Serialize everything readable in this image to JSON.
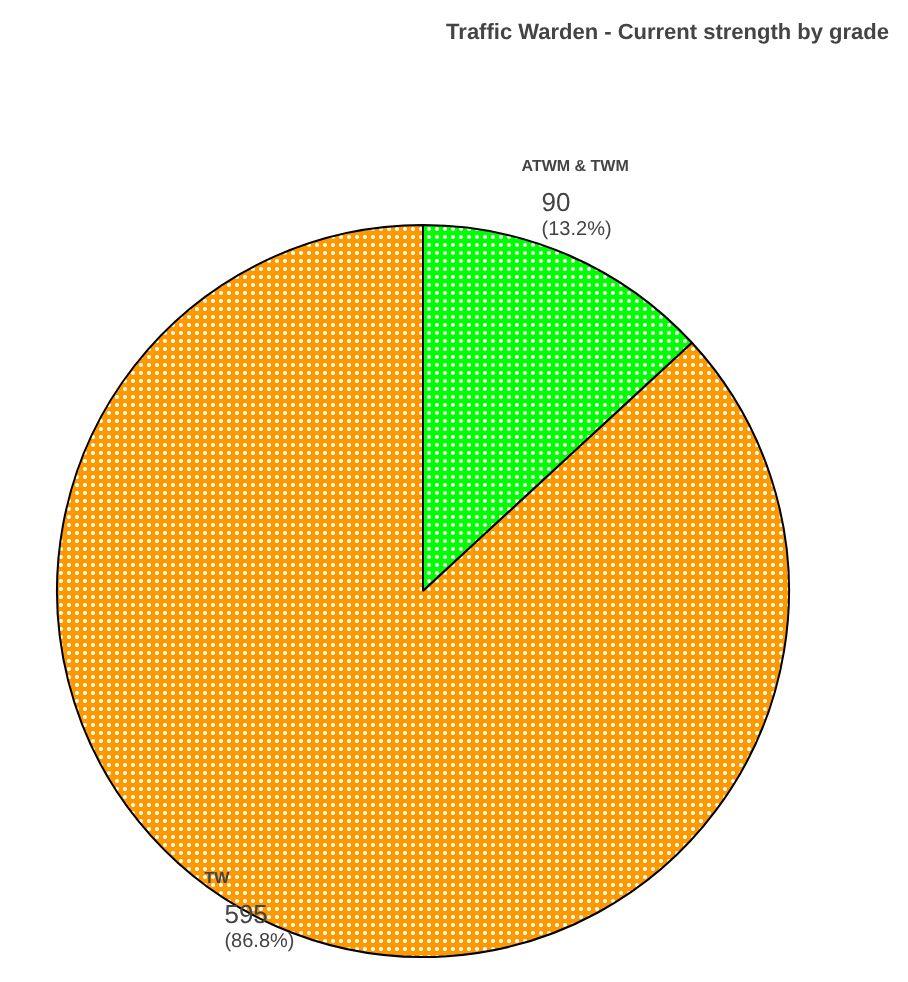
{
  "chart_data": {
    "type": "pie",
    "title": "Traffic Warden - Current strength by grade",
    "categories": [
      "ATWM & TWM",
      "TW"
    ],
    "values": [
      90,
      595
    ],
    "colors": [
      "#00ff00",
      "#ff9900"
    ],
    "value_labels": [
      "90\n(13.2%)",
      "595\n(86.8%)"
    ]
  }
}
